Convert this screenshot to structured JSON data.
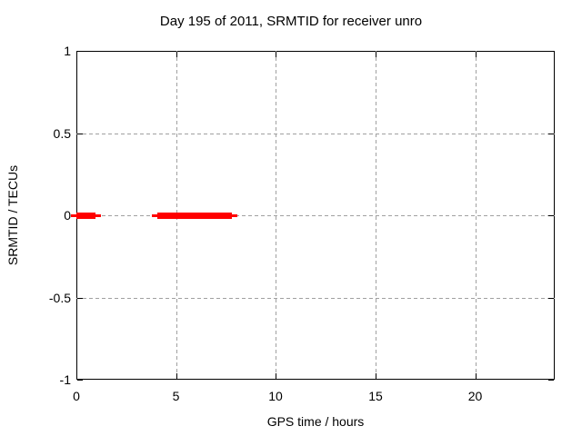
{
  "title": "Day 195 of 2011, SRMTID for receiver unro",
  "colors": {
    "accent": "#ff0000",
    "grid": "#a0a0a0",
    "foreground": "#000000",
    "background": "#ffffff"
  },
  "chart_data": {
    "type": "line",
    "title": "Day 195 of 2011, SRMTID for receiver unro",
    "xlabel": "GPS time / hours",
    "ylabel": "SRMTID / TECUs",
    "xlim": [
      0,
      24
    ],
    "ylim": [
      -1,
      1
    ],
    "x_ticks": [
      0,
      5,
      10,
      15,
      20
    ],
    "x_tick_labels": [
      "0",
      "5",
      "10",
      "15",
      "20"
    ],
    "y_ticks": [
      1,
      0.5,
      0,
      -0.5,
      -1
    ],
    "y_tick_labels": [
      "1",
      "0.5",
      "0",
      "-0.5",
      "-1"
    ],
    "grid": true,
    "legend": "none",
    "series": [
      {
        "name": "SRMTID",
        "color": "#ff0000",
        "style": "thick horizontal segments",
        "value": 0,
        "segments": [
          {
            "start": 0.0,
            "end": 0.93,
            "y": 0
          },
          {
            "start": 4.05,
            "end": 7.8,
            "y": 0
          }
        ]
      }
    ]
  }
}
